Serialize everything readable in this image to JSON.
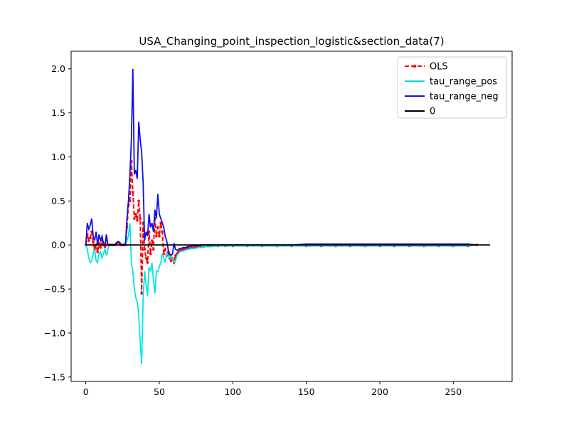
{
  "chart_data": {
    "type": "line",
    "title": "USA_Changing_point_inspection_logistic&section_data(7)",
    "xlabel": "",
    "ylabel": "",
    "xlim": [
      -10,
      290
    ],
    "ylim": [
      -1.55,
      2.2
    ],
    "x_ticks": [
      0,
      50,
      100,
      150,
      200,
      250
    ],
    "y_ticks": [
      -1.5,
      -1.0,
      -0.5,
      0.0,
      0.5,
      1.0,
      1.5,
      2.0
    ],
    "x_tick_labels": [
      "0",
      "50",
      "100",
      "150",
      "200",
      "250"
    ],
    "y_tick_labels": [
      "−1.5",
      "−1.0",
      "−0.5",
      "0.0",
      "0.5",
      "1.0",
      "1.5",
      "2.0"
    ],
    "legend_position": "top-right",
    "grid": false,
    "series": [
      {
        "name": "OLS",
        "color": "#ff0000",
        "style": "dashed-marker",
        "x": [
          0,
          1,
          2,
          3,
          4,
          5,
          6,
          7,
          8,
          9,
          10,
          11,
          12,
          13,
          14,
          15,
          16,
          17,
          18,
          19,
          20,
          21,
          22,
          23,
          24,
          25,
          26,
          27,
          28,
          29,
          30,
          31,
          32,
          33,
          34,
          35,
          36,
          37,
          38,
          39,
          40,
          41,
          42,
          43,
          44,
          45,
          46,
          47,
          48,
          49,
          50,
          51,
          52,
          53,
          54,
          55,
          56,
          57,
          58,
          59,
          60,
          61,
          62,
          63,
          64,
          65,
          66,
          67,
          68,
          69,
          70,
          72,
          74,
          76,
          78,
          80,
          85,
          90,
          95,
          100,
          110,
          120,
          130,
          140,
          150,
          160,
          170,
          180,
          190,
          200,
          210,
          220,
          230,
          240,
          250,
          260,
          266
        ],
        "y": [
          0.0,
          0.12,
          0.05,
          0.08,
          0.15,
          0.03,
          -0.05,
          0.0,
          -0.08,
          0.02,
          -0.03,
          0.05,
          0.0,
          -0.02,
          0.06,
          0.0,
          0.0,
          0.0,
          0.0,
          0.0,
          0.0,
          0.02,
          0.03,
          0.02,
          0.0,
          0.0,
          0.0,
          0.0,
          0.2,
          0.45,
          0.5,
          0.95,
          0.6,
          0.3,
          0.35,
          0.28,
          0.5,
          0.3,
          -0.55,
          0.25,
          -0.05,
          -0.15,
          -0.2,
          0.15,
          -0.1,
          0.05,
          -0.05,
          0.3,
          0.1,
          0.2,
          0.1,
          0.25,
          0.15,
          -0.1,
          -0.05,
          -0.12,
          -0.08,
          -0.15,
          -0.18,
          -0.15,
          -0.2,
          -0.12,
          -0.1,
          -0.08,
          -0.06,
          -0.06,
          -0.05,
          -0.05,
          -0.05,
          -0.04,
          -0.04,
          -0.03,
          -0.03,
          -0.02,
          -0.02,
          -0.02,
          -0.01,
          -0.01,
          -0.01,
          -0.01,
          -0.01,
          -0.01,
          -0.01,
          -0.01,
          -0.01,
          -0.01,
          -0.01,
          -0.01,
          -0.01,
          -0.01,
          -0.01,
          -0.01,
          -0.01,
          -0.01,
          -0.01,
          -0.01,
          0.0
        ]
      },
      {
        "name": "tau_range_pos",
        "color": "#00e5e5",
        "style": "solid",
        "x": [
          0,
          1,
          2,
          3,
          4,
          5,
          6,
          7,
          8,
          9,
          10,
          11,
          12,
          13,
          14,
          15,
          16,
          17,
          18,
          19,
          20,
          21,
          22,
          23,
          24,
          25,
          26,
          27,
          28,
          29,
          30,
          31,
          32,
          33,
          34,
          35,
          36,
          37,
          38,
          39,
          40,
          41,
          42,
          43,
          44,
          45,
          46,
          47,
          48,
          49,
          50,
          51,
          52,
          53,
          54,
          55,
          56,
          57,
          58,
          59,
          60,
          61,
          62,
          63,
          64,
          65,
          66,
          67,
          68,
          69,
          70,
          72,
          74,
          76,
          78,
          80,
          85,
          90,
          95,
          100,
          110,
          120,
          130,
          140,
          150,
          160,
          170,
          180,
          190,
          200,
          210,
          220,
          230,
          240,
          250,
          260,
          266
        ],
        "y": [
          0.0,
          -0.05,
          -0.15,
          -0.2,
          -0.18,
          -0.1,
          -0.05,
          -0.18,
          -0.2,
          -0.1,
          -0.08,
          -0.15,
          -0.1,
          -0.05,
          -0.12,
          -0.05,
          0.0,
          0.0,
          0.0,
          0.0,
          0.0,
          0.0,
          0.0,
          0.0,
          0.0,
          0.0,
          0.0,
          0.0,
          0.05,
          0.1,
          0.25,
          -0.2,
          -0.3,
          -0.5,
          -0.6,
          -0.65,
          -0.8,
          -1.1,
          -1.35,
          -0.6,
          -0.3,
          -0.45,
          -0.58,
          -0.25,
          -0.3,
          -0.2,
          -0.4,
          -0.55,
          -0.3,
          -0.3,
          -0.25,
          -0.2,
          -0.1,
          -0.15,
          -0.2,
          -0.1,
          -0.12,
          -0.15,
          -0.12,
          -0.15,
          -0.2,
          -0.18,
          -0.12,
          -0.1,
          -0.08,
          -0.07,
          -0.07,
          -0.06,
          -0.06,
          -0.05,
          -0.05,
          -0.04,
          -0.04,
          -0.03,
          -0.03,
          -0.02,
          -0.02,
          -0.01,
          -0.01,
          -0.01,
          -0.01,
          -0.01,
          -0.01,
          -0.01,
          -0.01,
          -0.01,
          -0.01,
          -0.01,
          -0.01,
          -0.01,
          -0.01,
          -0.01,
          -0.01,
          -0.01,
          -0.01,
          -0.01,
          0.0
        ]
      },
      {
        "name": "tau_range_neg",
        "color": "#1010e8",
        "style": "solid",
        "x": [
          0,
          1,
          2,
          3,
          4,
          5,
          6,
          7,
          8,
          9,
          10,
          11,
          12,
          13,
          14,
          15,
          16,
          17,
          18,
          19,
          20,
          21,
          22,
          23,
          24,
          25,
          26,
          27,
          28,
          29,
          30,
          31,
          32,
          33,
          34,
          35,
          36,
          37,
          38,
          39,
          40,
          41,
          42,
          43,
          44,
          45,
          46,
          47,
          48,
          49,
          50,
          51,
          52,
          53,
          54,
          55,
          56,
          57,
          58,
          59,
          60,
          61,
          62,
          63,
          64,
          65,
          66,
          67,
          68,
          69,
          70,
          72,
          74,
          76,
          78,
          80,
          85,
          90,
          95,
          100,
          110,
          120,
          130,
          140,
          150,
          160,
          170,
          180,
          190,
          200,
          210,
          220,
          230,
          240,
          250,
          260,
          266
        ],
        "y": [
          0.0,
          0.25,
          0.18,
          0.22,
          0.3,
          0.1,
          0.05,
          0.15,
          0.0,
          0.12,
          0.05,
          0.1,
          0.02,
          0.0,
          0.12,
          0.0,
          0.0,
          0.0,
          0.0,
          0.0,
          0.0,
          0.03,
          0.04,
          0.03,
          0.0,
          0.0,
          0.0,
          0.02,
          0.3,
          0.5,
          0.8,
          1.2,
          2.0,
          0.8,
          0.85,
          0.75,
          1.4,
          1.2,
          1.05,
          0.7,
          0.05,
          0.15,
          0.1,
          0.35,
          0.2,
          0.25,
          0.15,
          0.4,
          0.3,
          0.58,
          0.35,
          0.3,
          0.25,
          0.2,
          0.1,
          0.05,
          -0.05,
          -0.1,
          -0.12,
          -0.1,
          0.02,
          -0.05,
          -0.06,
          -0.05,
          -0.04,
          -0.04,
          -0.03,
          -0.03,
          -0.03,
          -0.02,
          -0.02,
          -0.01,
          -0.01,
          -0.01,
          0.0,
          0.0,
          0.0,
          0.0,
          0.0,
          0.0,
          0.0,
          0.0,
          0.0,
          0.0,
          0.01,
          0.01,
          0.01,
          0.01,
          0.01,
          0.01,
          0.01,
          0.01,
          0.01,
          0.01,
          0.01,
          0.01,
          0.0
        ]
      },
      {
        "name": "0",
        "color": "#000000",
        "style": "solid",
        "x": [
          0,
          275
        ],
        "y": [
          0,
          0
        ]
      }
    ]
  }
}
